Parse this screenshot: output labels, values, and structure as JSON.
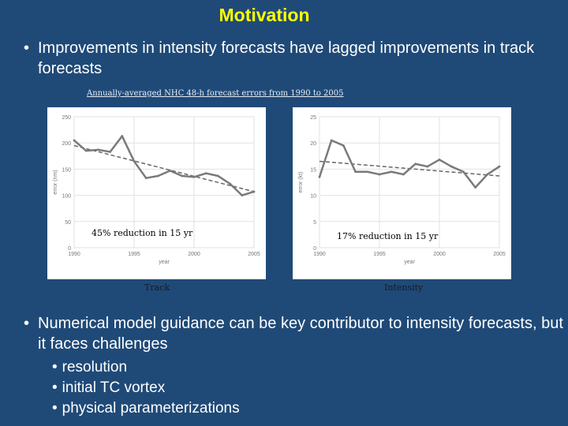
{
  "slide": {
    "title": "Motivation",
    "bullet1": "Improvements in intensity forecasts have lagged improvements in track forecasts",
    "caption": "Annually-averaged NHC 48-h forecast errors from 1990 to 2005",
    "bullet2": "Numerical model guidance can be key contributor to intensity forecasts, but it faces challenges",
    "subbullets": [
      "resolution",
      "initial TC vortex",
      "physical parameterizations"
    ],
    "bullet_glyph": "•"
  },
  "chart_data": [
    {
      "type": "line",
      "ylabel": "error (nm)",
      "xlabel": "year",
      "x": [
        1990,
        1991,
        1992,
        1993,
        1994,
        1995,
        1996,
        1997,
        1998,
        1999,
        2000,
        2001,
        2002,
        2003,
        2004,
        2005
      ],
      "values": [
        205,
        185,
        187,
        183,
        213,
        165,
        133,
        137,
        147,
        137,
        135,
        142,
        137,
        122,
        100,
        107
      ],
      "trend": [
        195,
        107
      ],
      "ylim": [
        0,
        250
      ],
      "xlim": [
        1990,
        2005
      ],
      "yticks": [
        0,
        50,
        100,
        150,
        200,
        250
      ],
      "xticks": [
        1990,
        1995,
        2000,
        2005
      ],
      "annotation": "45% reduction in 15 yr",
      "footer": "Track",
      "line_color": "#7a7a7a"
    },
    {
      "type": "line",
      "ylabel": "error (kt)",
      "xlabel": "year",
      "x": [
        1990,
        1991,
        1992,
        1993,
        1994,
        1995,
        1996,
        1997,
        1998,
        1999,
        2000,
        2001,
        2002,
        2003,
        2004,
        2005
      ],
      "values": [
        13.5,
        20.5,
        19.5,
        14.5,
        14.5,
        14,
        14.5,
        14,
        16,
        15.5,
        16.8,
        15.5,
        14.5,
        11.5,
        14,
        15.5
      ],
      "trend": [
        16.5,
        13.7
      ],
      "ylim": [
        0,
        25
      ],
      "xlim": [
        1990,
        2005
      ],
      "yticks": [
        0,
        5,
        10,
        15,
        20,
        25
      ],
      "xticks": [
        1990,
        1995,
        2000,
        2005
      ],
      "annotation": "17% reduction in 15 yr",
      "footer": "Intensity",
      "line_color": "#7a7a7a"
    }
  ]
}
